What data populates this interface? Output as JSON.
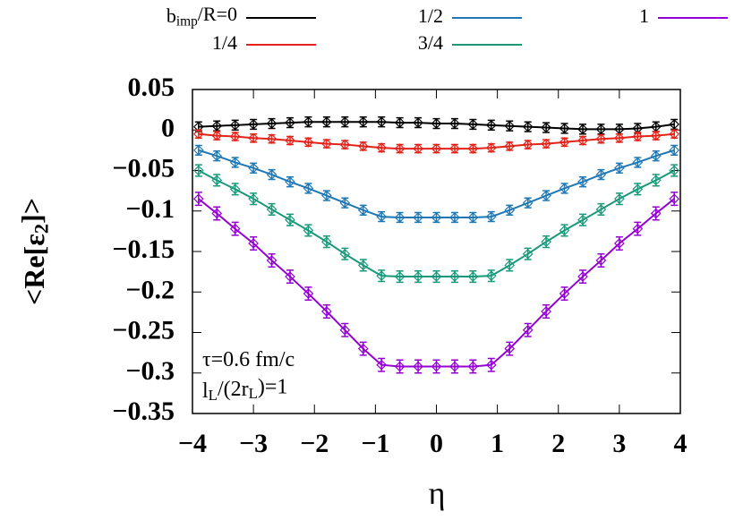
{
  "chart_data": {
    "type": "errorbar-line",
    "xlabel": "η",
    "ylabel": "<Re[ε_{2}]>",
    "annotations": [
      "τ=0.6 fm/c",
      "l_{L}/(2r_{L})=1"
    ],
    "x": [
      -3.9,
      -3.6,
      -3.3,
      -3.0,
      -2.7,
      -2.4,
      -2.1,
      -1.8,
      -1.5,
      -1.2,
      -0.9,
      -0.6,
      -0.3,
      0,
      0.3,
      0.6,
      0.9,
      1.2,
      1.5,
      1.8,
      2.1,
      2.4,
      2.7,
      3.0,
      3.3,
      3.6,
      3.9
    ],
    "xlim": [
      -4,
      4
    ],
    "xticks": [
      {
        "value": -4,
        "label": "−4"
      },
      {
        "value": -3,
        "label": "−3"
      },
      {
        "value": -2,
        "label": "−2"
      },
      {
        "value": -1,
        "label": "−1"
      },
      0,
      1,
      2,
      3,
      4
    ],
    "ylim": [
      -0.35,
      0.05
    ],
    "yticks": [
      {
        "value": -0.35,
        "label": "−0.35"
      },
      {
        "value": -0.3,
        "label": "−0.3"
      },
      {
        "value": -0.25,
        "label": "−0.25"
      },
      {
        "value": -0.2,
        "label": "−0.2"
      },
      {
        "value": -0.15,
        "label": "−0.15"
      },
      {
        "value": -0.1,
        "label": "−0.1"
      },
      {
        "value": -0.05,
        "label": "−0.05"
      },
      0,
      0.05
    ],
    "series": [
      {
        "name": "b_{imp}/R=0",
        "color": "#000000",
        "error": 0.006,
        "values": [
          0.004,
          0.005,
          0.006,
          0.007,
          0.008,
          0.009,
          0.01,
          0.01,
          0.01,
          0.01,
          0.01,
          0.009,
          0.009,
          0.008,
          0.008,
          0.007,
          0.006,
          0.005,
          0.004,
          0.003,
          0.002,
          0.001,
          0.001,
          0.001,
          0.002,
          0.004,
          0.007
        ]
      },
      {
        "name": "1/4",
        "color": "#e3231a",
        "error": 0.005,
        "values": [
          -0.005,
          -0.007,
          -0.008,
          -0.01,
          -0.011,
          -0.013,
          -0.015,
          -0.017,
          -0.018,
          -0.02,
          -0.022,
          -0.023,
          -0.023,
          -0.023,
          -0.023,
          -0.023,
          -0.022,
          -0.02,
          -0.018,
          -0.017,
          -0.015,
          -0.013,
          -0.011,
          -0.01,
          -0.008,
          -0.007,
          -0.005
        ]
      },
      {
        "name": "1/2",
        "color": "#1f78b4",
        "error": 0.006,
        "values": [
          -0.025,
          -0.032,
          -0.04,
          -0.047,
          -0.055,
          -0.064,
          -0.072,
          -0.081,
          -0.09,
          -0.099,
          -0.107,
          -0.108,
          -0.108,
          -0.108,
          -0.108,
          -0.108,
          -0.107,
          -0.099,
          -0.09,
          -0.081,
          -0.072,
          -0.064,
          -0.055,
          -0.047,
          -0.04,
          -0.032,
          -0.025
        ]
      },
      {
        "name": "3/4",
        "color": "#17997a",
        "error": 0.007,
        "values": [
          -0.05,
          -0.062,
          -0.073,
          -0.085,
          -0.098,
          -0.111,
          -0.124,
          -0.138,
          -0.153,
          -0.167,
          -0.18,
          -0.181,
          -0.181,
          -0.181,
          -0.181,
          -0.181,
          -0.18,
          -0.167,
          -0.153,
          -0.138,
          -0.124,
          -0.111,
          -0.098,
          -0.085,
          -0.073,
          -0.062,
          -0.05
        ]
      },
      {
        "name": "1",
        "color": "#9400d3",
        "error": 0.008,
        "values": [
          -0.085,
          -0.103,
          -0.122,
          -0.14,
          -0.161,
          -0.181,
          -0.202,
          -0.224,
          -0.247,
          -0.27,
          -0.29,
          -0.292,
          -0.292,
          -0.292,
          -0.292,
          -0.292,
          -0.29,
          -0.27,
          -0.247,
          -0.224,
          -0.202,
          -0.181,
          -0.161,
          -0.14,
          -0.122,
          -0.103,
          -0.085
        ]
      }
    ]
  }
}
